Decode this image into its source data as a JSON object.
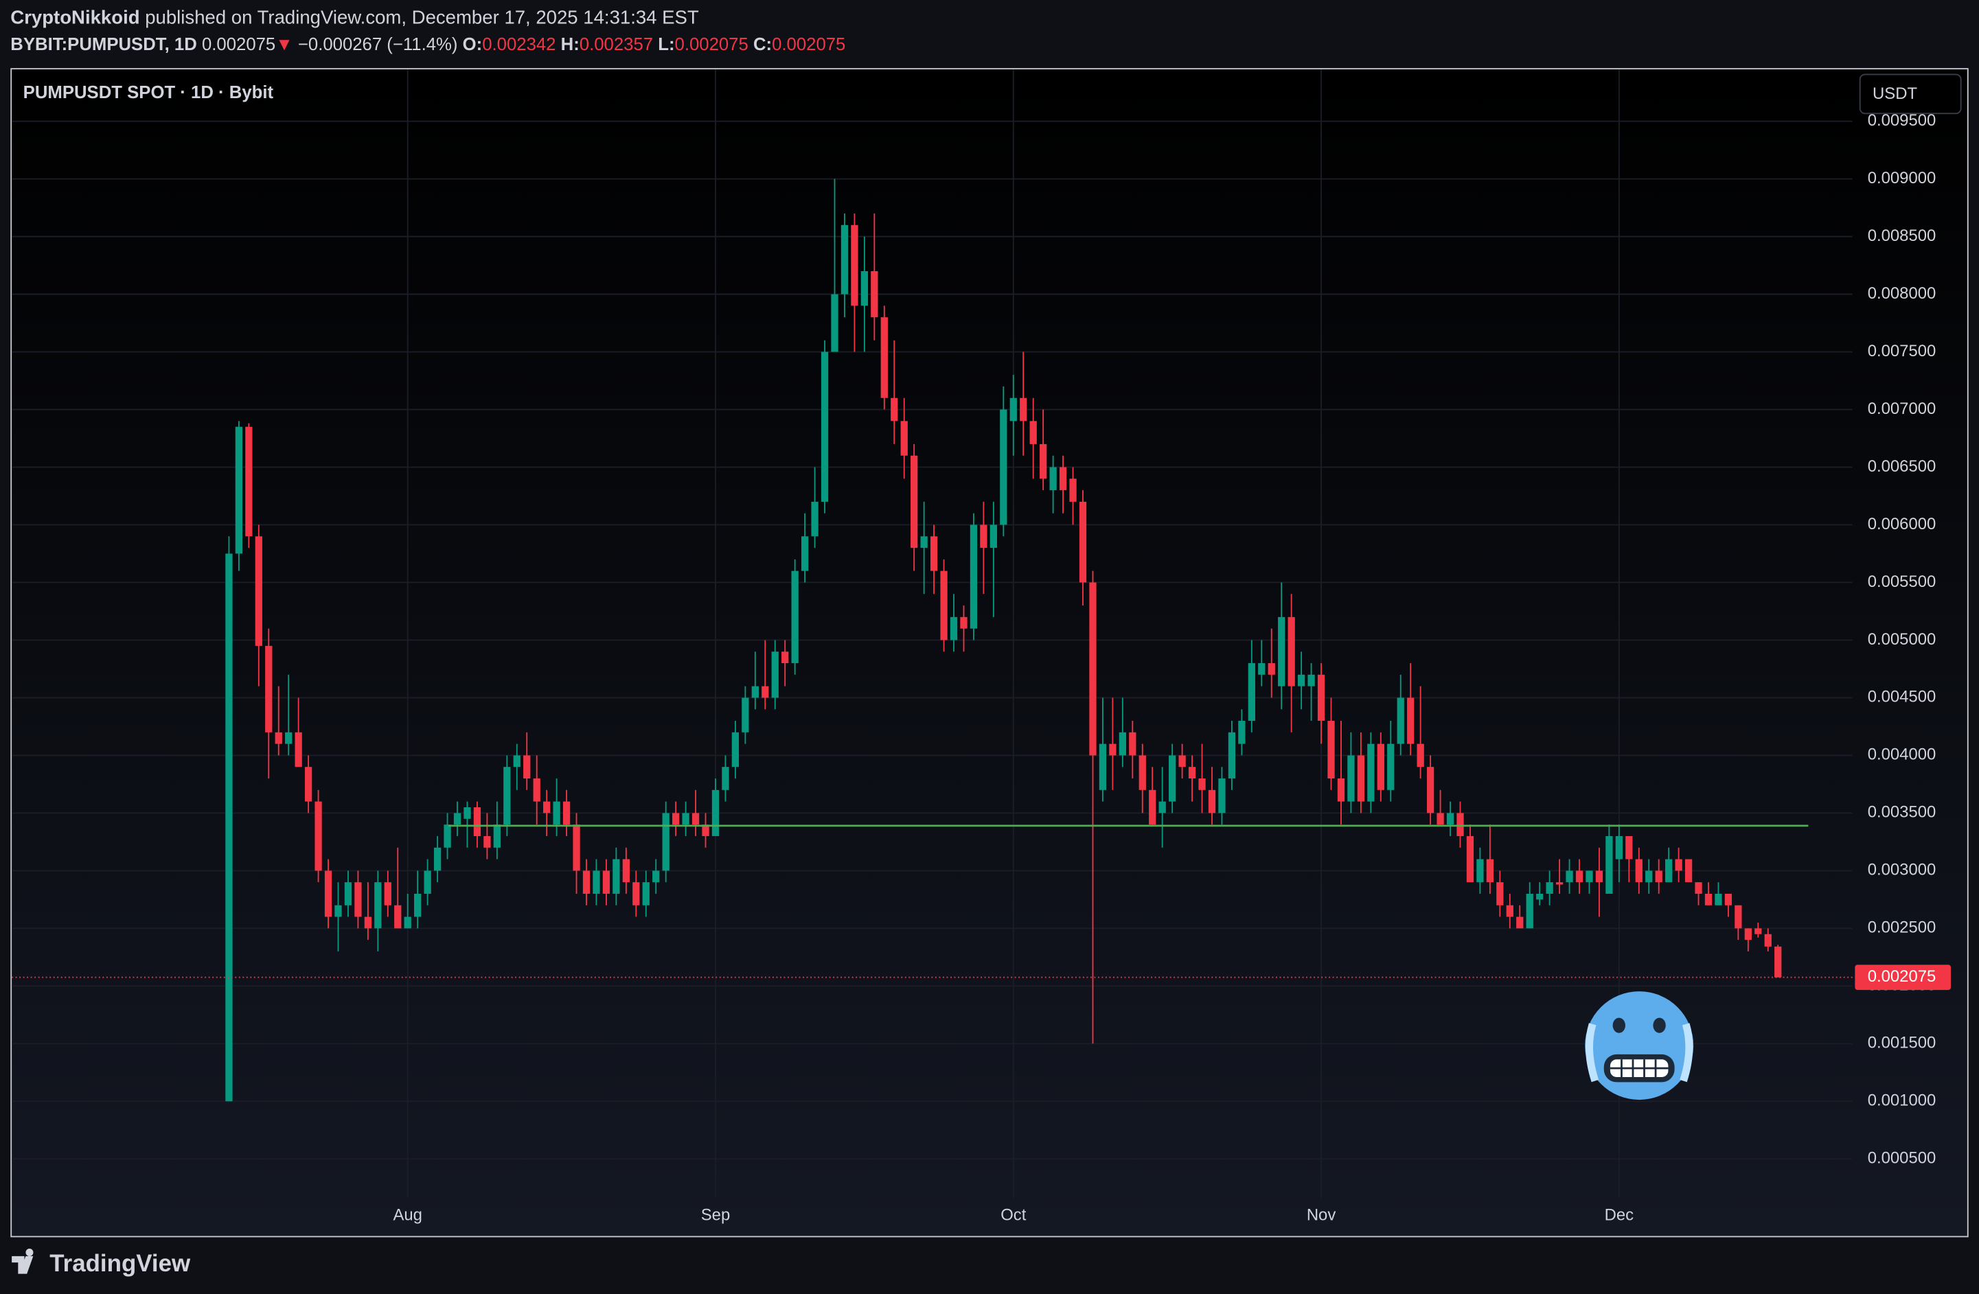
{
  "header": {
    "author": "CryptoNikkoid",
    "published": "published on TradingView.com, December 17, 2025 14:31:34 EST",
    "symbol": "BYBIT:PUMPUSDT, 1D",
    "price": "0.002075",
    "arrow": "▼",
    "change": "−0.000267 (−11.4%)",
    "o_label": "O:",
    "o_value": "0.002342",
    "h_label": "H:",
    "h_value": "0.002357",
    "l_label": "L:",
    "l_value": "0.002075",
    "c_label": "C:",
    "c_value": "0.002075"
  },
  "footer": {
    "brand": "TradingView"
  },
  "chart_data": {
    "type": "candlestick",
    "title": "PUMPUSDT SPOT · 1D · Bybit",
    "currency": "USDT",
    "up_color": "#089981",
    "down_color": "#f23645",
    "grid": true,
    "xlim": [
      -22,
      163.5
    ],
    "xticks": [
      {
        "value": 18,
        "label": "Aug"
      },
      {
        "value": 49,
        "label": "Sep"
      },
      {
        "value": 79,
        "label": "Oct"
      },
      {
        "value": 110,
        "label": "Nov"
      },
      {
        "value": 140,
        "label": "Dec"
      }
    ],
    "ylim": [
      0.00016,
      0.00995
    ],
    "yticks": [
      {
        "value": 0.0005,
        "label": "0.000500"
      },
      {
        "value": 0.001,
        "label": "0.001000"
      },
      {
        "value": 0.0015,
        "label": "0.001500"
      },
      {
        "value": 0.002,
        "label": "0.002000"
      },
      {
        "value": 0.0025,
        "label": "0.002500"
      },
      {
        "value": 0.003,
        "label": "0.003000"
      },
      {
        "value": 0.0035,
        "label": "0.003500"
      },
      {
        "value": 0.004,
        "label": "0.004000"
      },
      {
        "value": 0.0045,
        "label": "0.004500"
      },
      {
        "value": 0.005,
        "label": "0.005000"
      },
      {
        "value": 0.0055,
        "label": "0.005500"
      },
      {
        "value": 0.006,
        "label": "0.006000"
      },
      {
        "value": 0.0065,
        "label": "0.006500"
      },
      {
        "value": 0.007,
        "label": "0.007000"
      },
      {
        "value": 0.0075,
        "label": "0.007500"
      },
      {
        "value": 0.008,
        "label": "0.008000"
      },
      {
        "value": 0.0085,
        "label": "0.008500"
      },
      {
        "value": 0.009,
        "label": "0.009000"
      },
      {
        "value": 0.0095,
        "label": "0.009500"
      }
    ],
    "hline": {
      "value": 0.00339,
      "color": "#4caf50"
    },
    "last_price": 0.002075,
    "candles": [
      [
        0.001,
        0.0059,
        0.001,
        0.00575
      ],
      [
        0.00575,
        0.0069,
        0.0056,
        0.00685
      ],
      [
        0.00685,
        0.00688,
        0.0058,
        0.0059
      ],
      [
        0.0059,
        0.006,
        0.0046,
        0.00495
      ],
      [
        0.00495,
        0.0051,
        0.0038,
        0.0042
      ],
      [
        0.0042,
        0.0046,
        0.004,
        0.0041
      ],
      [
        0.0041,
        0.0047,
        0.004,
        0.0042
      ],
      [
        0.0042,
        0.0045,
        0.0039,
        0.0039
      ],
      [
        0.0039,
        0.004,
        0.0035,
        0.0036
      ],
      [
        0.0036,
        0.0037,
        0.0029,
        0.003
      ],
      [
        0.003,
        0.0031,
        0.0025,
        0.0026
      ],
      [
        0.0026,
        0.0029,
        0.0023,
        0.0027
      ],
      [
        0.0027,
        0.003,
        0.0026,
        0.0029
      ],
      [
        0.0029,
        0.003,
        0.0025,
        0.0026
      ],
      [
        0.0026,
        0.0029,
        0.0024,
        0.0025
      ],
      [
        0.0025,
        0.003,
        0.0023,
        0.0029
      ],
      [
        0.0029,
        0.003,
        0.0026,
        0.0027
      ],
      [
        0.0027,
        0.0032,
        0.0025,
        0.0025
      ],
      [
        0.0025,
        0.0028,
        0.0025,
        0.0026
      ],
      [
        0.0026,
        0.003,
        0.0025,
        0.0028
      ],
      [
        0.0028,
        0.0031,
        0.0027,
        0.003
      ],
      [
        0.003,
        0.0033,
        0.0029,
        0.0032
      ],
      [
        0.0032,
        0.0035,
        0.0031,
        0.0034
      ],
      [
        0.0034,
        0.0036,
        0.0033,
        0.0035
      ],
      [
        0.00345,
        0.0036,
        0.0032,
        0.00355
      ],
      [
        0.00355,
        0.0036,
        0.0032,
        0.0033
      ],
      [
        0.0033,
        0.0035,
        0.0031,
        0.0032
      ],
      [
        0.0032,
        0.0036,
        0.0031,
        0.0034
      ],
      [
        0.0034,
        0.004,
        0.0033,
        0.0039
      ],
      [
        0.0039,
        0.0041,
        0.0037,
        0.004
      ],
      [
        0.004,
        0.0042,
        0.0037,
        0.0038
      ],
      [
        0.0038,
        0.004,
        0.0034,
        0.0036
      ],
      [
        0.0036,
        0.0037,
        0.0033,
        0.0035
      ],
      [
        0.0034,
        0.0038,
        0.0033,
        0.0036
      ],
      [
        0.0036,
        0.0037,
        0.0033,
        0.0034
      ],
      [
        0.0034,
        0.0035,
        0.0028,
        0.003
      ],
      [
        0.003,
        0.0031,
        0.0027,
        0.0028
      ],
      [
        0.0028,
        0.0031,
        0.0027,
        0.003
      ],
      [
        0.003,
        0.0031,
        0.0027,
        0.0028
      ],
      [
        0.0028,
        0.0032,
        0.0027,
        0.0031
      ],
      [
        0.0031,
        0.0032,
        0.0028,
        0.0029
      ],
      [
        0.0029,
        0.003,
        0.0026,
        0.0027
      ],
      [
        0.0027,
        0.003,
        0.0026,
        0.0029
      ],
      [
        0.0029,
        0.0031,
        0.0028,
        0.003
      ],
      [
        0.003,
        0.0036,
        0.0029,
        0.0035
      ],
      [
        0.0035,
        0.0036,
        0.0033,
        0.0034
      ],
      [
        0.0034,
        0.0036,
        0.0033,
        0.0035
      ],
      [
        0.0035,
        0.0037,
        0.0033,
        0.0034
      ],
      [
        0.0034,
        0.0035,
        0.0032,
        0.0033
      ],
      [
        0.0033,
        0.0038,
        0.0033,
        0.0037
      ],
      [
        0.0037,
        0.004,
        0.0036,
        0.0039
      ],
      [
        0.0039,
        0.0043,
        0.0038,
        0.0042
      ],
      [
        0.0042,
        0.0046,
        0.0041,
        0.0045
      ],
      [
        0.0045,
        0.0049,
        0.0044,
        0.0046
      ],
      [
        0.0046,
        0.005,
        0.0044,
        0.0045
      ],
      [
        0.0045,
        0.005,
        0.0044,
        0.0049
      ],
      [
        0.0049,
        0.005,
        0.0046,
        0.0048
      ],
      [
        0.0048,
        0.0057,
        0.0047,
        0.0056
      ],
      [
        0.0056,
        0.0061,
        0.0055,
        0.0059
      ],
      [
        0.0059,
        0.0065,
        0.0058,
        0.0062
      ],
      [
        0.0062,
        0.0076,
        0.0061,
        0.0075
      ],
      [
        0.0075,
        0.009,
        0.0075,
        0.008
      ],
      [
        0.008,
        0.0087,
        0.0078,
        0.0086
      ],
      [
        0.0086,
        0.0087,
        0.0075,
        0.0079
      ],
      [
        0.0079,
        0.0085,
        0.0075,
        0.0082
      ],
      [
        0.0082,
        0.0087,
        0.0076,
        0.0078
      ],
      [
        0.0078,
        0.0079,
        0.007,
        0.0071
      ],
      [
        0.0071,
        0.0076,
        0.0067,
        0.0069
      ],
      [
        0.0069,
        0.0071,
        0.0064,
        0.0066
      ],
      [
        0.0066,
        0.0067,
        0.0056,
        0.0058
      ],
      [
        0.0058,
        0.0062,
        0.0054,
        0.0059
      ],
      [
        0.0059,
        0.006,
        0.0054,
        0.0056
      ],
      [
        0.0056,
        0.0057,
        0.0049,
        0.005
      ],
      [
        0.005,
        0.0054,
        0.0049,
        0.0052
      ],
      [
        0.0052,
        0.0053,
        0.0049,
        0.0051
      ],
      [
        0.0051,
        0.0061,
        0.005,
        0.006
      ],
      [
        0.006,
        0.0062,
        0.0054,
        0.0058
      ],
      [
        0.0058,
        0.0062,
        0.0052,
        0.006
      ],
      [
        0.006,
        0.0072,
        0.0059,
        0.007
      ],
      [
        0.0069,
        0.0073,
        0.0066,
        0.0071
      ],
      [
        0.0071,
        0.0075,
        0.0066,
        0.0069
      ],
      [
        0.0069,
        0.0071,
        0.0064,
        0.0067
      ],
      [
        0.0067,
        0.007,
        0.0063,
        0.0064
      ],
      [
        0.0063,
        0.0066,
        0.0061,
        0.0065
      ],
      [
        0.0065,
        0.0066,
        0.0061,
        0.0063
      ],
      [
        0.0064,
        0.0065,
        0.006,
        0.0062
      ],
      [
        0.0062,
        0.0063,
        0.0053,
        0.0055
      ],
      [
        0.0055,
        0.0056,
        0.0015,
        0.004
      ],
      [
        0.0037,
        0.0045,
        0.0036,
        0.0041
      ],
      [
        0.0041,
        0.0045,
        0.0037,
        0.004
      ],
      [
        0.004,
        0.0045,
        0.0039,
        0.0042
      ],
      [
        0.0042,
        0.0043,
        0.0038,
        0.004
      ],
      [
        0.004,
        0.0041,
        0.0035,
        0.0037
      ],
      [
        0.0037,
        0.0039,
        0.0034,
        0.0034
      ],
      [
        0.0035,
        0.0039,
        0.0032,
        0.0036
      ],
      [
        0.0036,
        0.0041,
        0.0035,
        0.004
      ],
      [
        0.004,
        0.0041,
        0.0038,
        0.0039
      ],
      [
        0.0039,
        0.004,
        0.0036,
        0.0038
      ],
      [
        0.0038,
        0.0041,
        0.0035,
        0.0037
      ],
      [
        0.0037,
        0.0039,
        0.0034,
        0.0035
      ],
      [
        0.0035,
        0.0039,
        0.0034,
        0.0038
      ],
      [
        0.0038,
        0.0043,
        0.0037,
        0.0042
      ],
      [
        0.0041,
        0.0044,
        0.004,
        0.0043
      ],
      [
        0.0043,
        0.005,
        0.0042,
        0.0048
      ],
      [
        0.0047,
        0.005,
        0.0046,
        0.0048
      ],
      [
        0.0048,
        0.0051,
        0.0045,
        0.0047
      ],
      [
        0.0046,
        0.0055,
        0.0044,
        0.0052
      ],
      [
        0.0052,
        0.0054,
        0.0042,
        0.0046
      ],
      [
        0.0046,
        0.0049,
        0.0044,
        0.0047
      ],
      [
        0.0046,
        0.0048,
        0.0043,
        0.0047
      ],
      [
        0.0047,
        0.0048,
        0.0041,
        0.0043
      ],
      [
        0.0043,
        0.0045,
        0.0037,
        0.0038
      ],
      [
        0.0038,
        0.0043,
        0.0034,
        0.0036
      ],
      [
        0.0036,
        0.0042,
        0.0035,
        0.004
      ],
      [
        0.004,
        0.0042,
        0.0035,
        0.0036
      ],
      [
        0.0036,
        0.0042,
        0.0035,
        0.0041
      ],
      [
        0.0041,
        0.0042,
        0.0036,
        0.0037
      ],
      [
        0.0037,
        0.0043,
        0.0036,
        0.0041
      ],
      [
        0.0041,
        0.0047,
        0.004,
        0.0045
      ],
      [
        0.0045,
        0.0048,
        0.004,
        0.0041
      ],
      [
        0.0041,
        0.0046,
        0.0038,
        0.0039
      ],
      [
        0.0039,
        0.004,
        0.0034,
        0.0035
      ],
      [
        0.0035,
        0.0037,
        0.0034,
        0.0034
      ],
      [
        0.0034,
        0.0036,
        0.0033,
        0.0035
      ],
      [
        0.0035,
        0.0036,
        0.0032,
        0.0033
      ],
      [
        0.0033,
        0.0034,
        0.0029,
        0.0029
      ],
      [
        0.0029,
        0.0032,
        0.0028,
        0.0031
      ],
      [
        0.0031,
        0.0034,
        0.0028,
        0.0029
      ],
      [
        0.0029,
        0.003,
        0.0026,
        0.0027
      ],
      [
        0.0027,
        0.0028,
        0.0025,
        0.0026
      ],
      [
        0.0026,
        0.0027,
        0.0025,
        0.0025
      ],
      [
        0.0025,
        0.0029,
        0.0025,
        0.0028
      ],
      [
        0.00275,
        0.0029,
        0.0027,
        0.0028
      ],
      [
        0.0028,
        0.003,
        0.0027,
        0.0029
      ],
      [
        0.0029,
        0.0031,
        0.0028,
        0.00288
      ],
      [
        0.0029,
        0.0031,
        0.0028,
        0.003
      ],
      [
        0.003,
        0.0031,
        0.0028,
        0.0029
      ],
      [
        0.0029,
        0.003,
        0.0028,
        0.003
      ],
      [
        0.003,
        0.0032,
        0.0026,
        0.0029
      ],
      [
        0.0028,
        0.0034,
        0.0028,
        0.0033
      ],
      [
        0.0031,
        0.0034,
        0.0029,
        0.0033
      ],
      [
        0.0033,
        0.0033,
        0.0029,
        0.0031
      ],
      [
        0.0031,
        0.0032,
        0.0028,
        0.0029
      ],
      [
        0.0029,
        0.0031,
        0.0028,
        0.003
      ],
      [
        0.003,
        0.0031,
        0.0028,
        0.0029
      ],
      [
        0.0029,
        0.0032,
        0.0029,
        0.0031
      ],
      [
        0.0031,
        0.0032,
        0.0029,
        0.003
      ],
      [
        0.0031,
        0.0031,
        0.0029,
        0.0029
      ],
      [
        0.0029,
        0.0029,
        0.0027,
        0.0028
      ],
      [
        0.0028,
        0.0029,
        0.0027,
        0.0027
      ],
      [
        0.0027,
        0.0029,
        0.0027,
        0.0028
      ],
      [
        0.0028,
        0.0028,
        0.0026,
        0.0027
      ],
      [
        0.0027,
        0.0027,
        0.0024,
        0.0025
      ],
      [
        0.0025,
        0.0025,
        0.0023,
        0.0024
      ],
      [
        0.0025,
        0.00255,
        0.00242,
        0.00245
      ],
      [
        0.00245,
        0.0025,
        0.0023,
        0.002342
      ],
      [
        0.002342,
        0.002357,
        0.002075,
        0.002075
      ]
    ]
  }
}
